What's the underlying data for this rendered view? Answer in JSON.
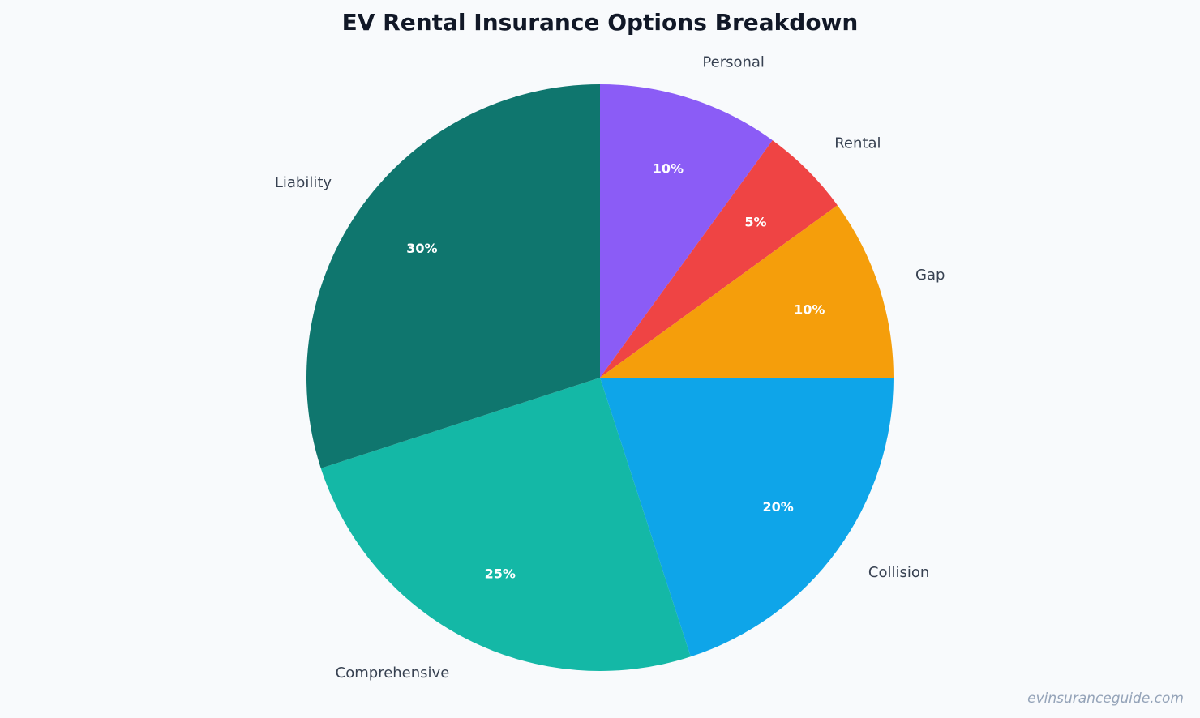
{
  "chart_data": {
    "type": "pie",
    "title": "EV Rental Insurance Options Breakdown",
    "categories": [
      "Personal",
      "Rental",
      "Gap",
      "Collision",
      "Comprehensive",
      "Liability"
    ],
    "values": [
      10,
      5,
      10,
      20,
      25,
      30
    ],
    "value_labels": [
      "10%",
      "5%",
      "10%",
      "20%",
      "25%",
      "30%"
    ],
    "colors": [
      "#8b5cf6",
      "#ef4444",
      "#f59e0b",
      "#0ea5e9",
      "#14b8a6",
      "#0f766e"
    ],
    "start_angle": "12 o'clock",
    "direction": "clockwise",
    "legend": "none"
  },
  "watermark": "evinsuranceguide.com"
}
